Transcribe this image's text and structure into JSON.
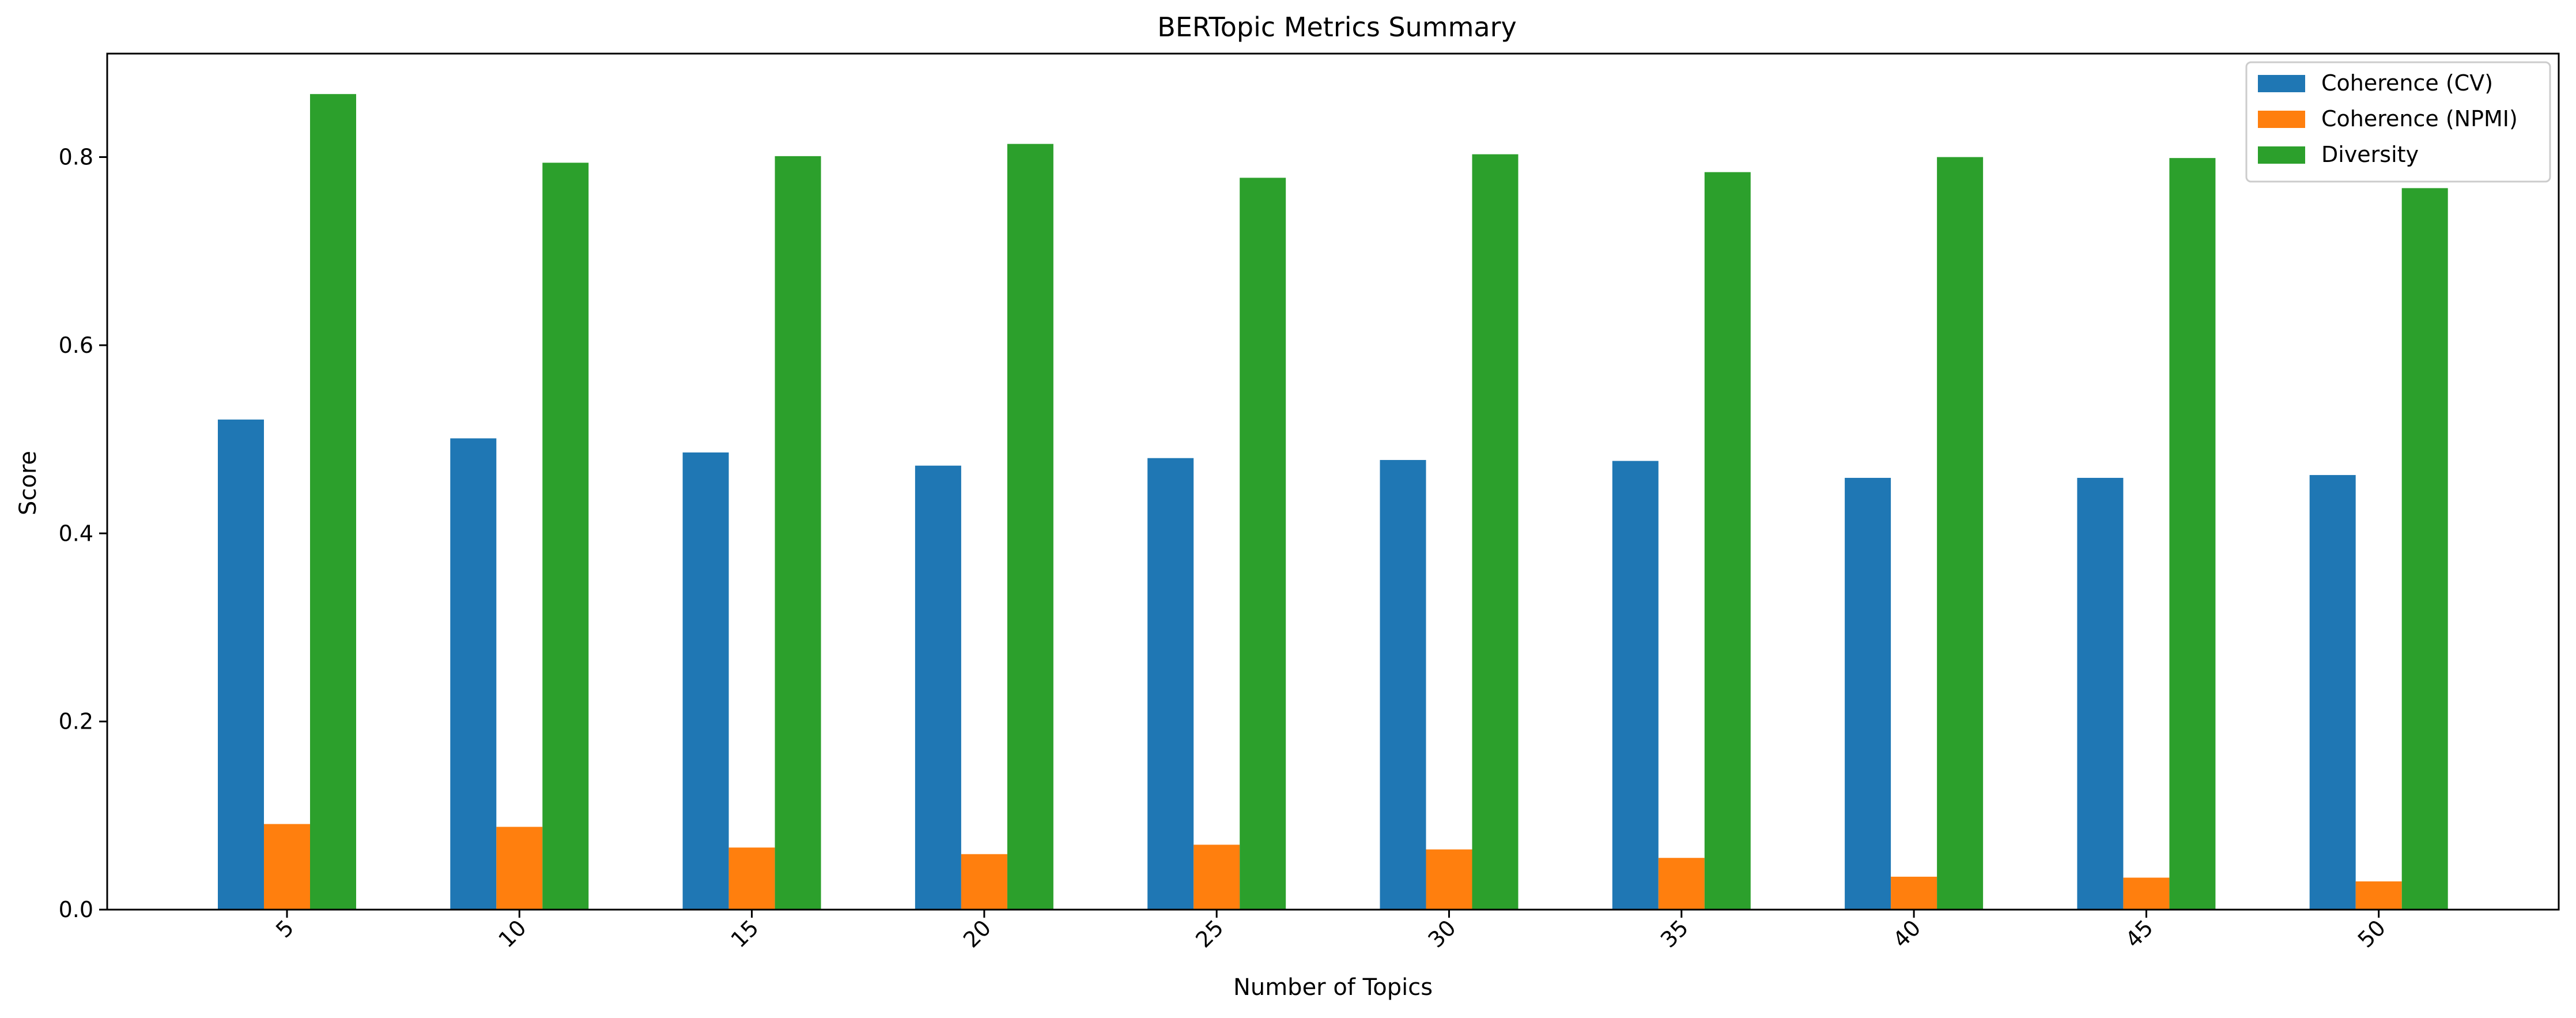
{
  "chart_data": {
    "type": "bar",
    "title": "BERTopic Metrics Summary",
    "xlabel": "Number of Topics",
    "ylabel": "Score",
    "categories": [
      "5",
      "10",
      "15",
      "20",
      "25",
      "30",
      "35",
      "40",
      "45",
      "50"
    ],
    "series": [
      {
        "name": "Coherence (CV)",
        "color": "#1f77b4",
        "values": [
          0.521,
          0.501,
          0.486,
          0.472,
          0.48,
          0.478,
          0.477,
          0.459,
          0.459,
          0.462
        ]
      },
      {
        "name": "Coherence (NPMI)",
        "color": "#ff7f0e",
        "values": [
          0.091,
          0.088,
          0.066,
          0.059,
          0.069,
          0.064,
          0.055,
          0.035,
          0.034,
          0.03
        ]
      },
      {
        "name": "Diversity",
        "color": "#2ca02c",
        "values": [
          0.867,
          0.794,
          0.801,
          0.814,
          0.778,
          0.803,
          0.784,
          0.8,
          0.799,
          0.767
        ]
      }
    ],
    "ylim": [
      0,
      0.91
    ],
    "yticks": [
      "0.0",
      "0.2",
      "0.4",
      "0.6",
      "0.8"
    ],
    "grid": false,
    "legend_position": "top-right"
  }
}
